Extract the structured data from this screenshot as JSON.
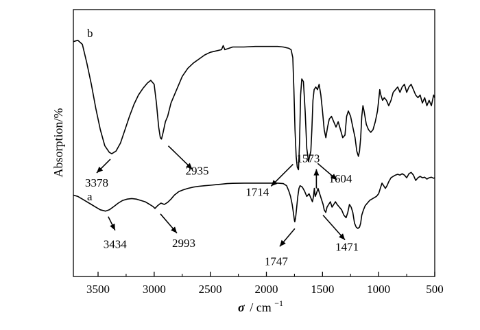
{
  "chart_data": {
    "type": "line",
    "title": "",
    "xlabel_symbol": "σ",
    "xlabel_unit": "/ cm",
    "xlabel_sup": "−1",
    "ylabel": "Absorption/%",
    "xlim": [
      3720,
      500
    ],
    "x_reversed": true,
    "y_tick_labels": false,
    "xticks": [
      3500,
      3000,
      2500,
      2000,
      1500,
      1000,
      500
    ],
    "series": [
      {
        "name": "b",
        "points": [
          [
            3720,
            0.88
          ],
          [
            3680,
            0.885
          ],
          [
            3640,
            0.87
          ],
          [
            3600,
            0.8
          ],
          [
            3560,
            0.72
          ],
          [
            3520,
            0.63
          ],
          [
            3480,
            0.55
          ],
          [
            3440,
            0.49
          ],
          [
            3400,
            0.465
          ],
          [
            3378,
            0.46
          ],
          [
            3340,
            0.47
          ],
          [
            3300,
            0.5
          ],
          [
            3260,
            0.55
          ],
          [
            3220,
            0.6
          ],
          [
            3180,
            0.645
          ],
          [
            3140,
            0.68
          ],
          [
            3100,
            0.705
          ],
          [
            3060,
            0.725
          ],
          [
            3030,
            0.735
          ],
          [
            3000,
            0.72
          ],
          [
            2980,
            0.65
          ],
          [
            2960,
            0.56
          ],
          [
            2945,
            0.52
          ],
          [
            2935,
            0.515
          ],
          [
            2920,
            0.54
          ],
          [
            2900,
            0.58
          ],
          [
            2880,
            0.6
          ],
          [
            2850,
            0.65
          ],
          [
            2800,
            0.7
          ],
          [
            2750,
            0.75
          ],
          [
            2700,
            0.78
          ],
          [
            2650,
            0.8
          ],
          [
            2600,
            0.815
          ],
          [
            2550,
            0.83
          ],
          [
            2500,
            0.84
          ],
          [
            2450,
            0.845
          ],
          [
            2400,
            0.85
          ],
          [
            2385,
            0.865
          ],
          [
            2370,
            0.85
          ],
          [
            2300,
            0.86
          ],
          [
            2200,
            0.86
          ],
          [
            2100,
            0.862
          ],
          [
            2000,
            0.862
          ],
          [
            1900,
            0.862
          ],
          [
            1850,
            0.86
          ],
          [
            1800,
            0.855
          ],
          [
            1780,
            0.85
          ],
          [
            1765,
            0.82
          ],
          [
            1755,
            0.7
          ],
          [
            1745,
            0.55
          ],
          [
            1735,
            0.45
          ],
          [
            1725,
            0.41
          ],
          [
            1714,
            0.4
          ],
          [
            1705,
            0.5
          ],
          [
            1695,
            0.68
          ],
          [
            1685,
            0.74
          ],
          [
            1670,
            0.73
          ],
          [
            1655,
            0.62
          ],
          [
            1640,
            0.48
          ],
          [
            1625,
            0.43
          ],
          [
            1615,
            0.45
          ],
          [
            1604,
            0.47
          ],
          [
            1595,
            0.55
          ],
          [
            1585,
            0.66
          ],
          [
            1575,
            0.7
          ],
          [
            1560,
            0.71
          ],
          [
            1545,
            0.7
          ],
          [
            1530,
            0.72
          ],
          [
            1515,
            0.68
          ],
          [
            1500,
            0.62
          ],
          [
            1485,
            0.55
          ],
          [
            1470,
            0.52
          ],
          [
            1455,
            0.56
          ],
          [
            1440,
            0.59
          ],
          [
            1420,
            0.6
          ],
          [
            1400,
            0.58
          ],
          [
            1380,
            0.56
          ],
          [
            1360,
            0.58
          ],
          [
            1340,
            0.55
          ],
          [
            1320,
            0.52
          ],
          [
            1300,
            0.53
          ],
          [
            1285,
            0.6
          ],
          [
            1270,
            0.62
          ],
          [
            1250,
            0.6
          ],
          [
            1230,
            0.56
          ],
          [
            1210,
            0.52
          ],
          [
            1195,
            0.47
          ],
          [
            1180,
            0.45
          ],
          [
            1170,
            0.47
          ],
          [
            1160,
            0.52
          ],
          [
            1150,
            0.6
          ],
          [
            1140,
            0.64
          ],
          [
            1130,
            0.62
          ],
          [
            1110,
            0.57
          ],
          [
            1090,
            0.55
          ],
          [
            1070,
            0.54
          ],
          [
            1050,
            0.55
          ],
          [
            1030,
            0.58
          ],
          [
            1010,
            0.62
          ],
          [
            1000,
            0.66
          ],
          [
            990,
            0.7
          ],
          [
            980,
            0.68
          ],
          [
            965,
            0.66
          ],
          [
            950,
            0.67
          ],
          [
            930,
            0.66
          ],
          [
            910,
            0.64
          ],
          [
            890,
            0.66
          ],
          [
            870,
            0.69
          ],
          [
            850,
            0.7
          ],
          [
            830,
            0.71
          ],
          [
            810,
            0.69
          ],
          [
            790,
            0.71
          ],
          [
            770,
            0.72
          ],
          [
            750,
            0.69
          ],
          [
            730,
            0.71
          ],
          [
            710,
            0.72
          ],
          [
            690,
            0.7
          ],
          [
            670,
            0.68
          ],
          [
            650,
            0.67
          ],
          [
            630,
            0.68
          ],
          [
            610,
            0.65
          ],
          [
            590,
            0.67
          ],
          [
            570,
            0.64
          ],
          [
            550,
            0.66
          ],
          [
            530,
            0.64
          ],
          [
            510,
            0.68
          ],
          [
            500,
            0.67
          ]
        ]
      },
      {
        "name": "a",
        "points": [
          [
            3720,
            0.305
          ],
          [
            3680,
            0.3
          ],
          [
            3640,
            0.29
          ],
          [
            3600,
            0.28
          ],
          [
            3560,
            0.27
          ],
          [
            3520,
            0.26
          ],
          [
            3480,
            0.25
          ],
          [
            3434,
            0.245
          ],
          [
            3400,
            0.25
          ],
          [
            3360,
            0.262
          ],
          [
            3320,
            0.275
          ],
          [
            3280,
            0.285
          ],
          [
            3240,
            0.29
          ],
          [
            3200,
            0.292
          ],
          [
            3160,
            0.29
          ],
          [
            3120,
            0.285
          ],
          [
            3080,
            0.28
          ],
          [
            3040,
            0.27
          ],
          [
            3010,
            0.262
          ],
          [
            2993,
            0.255
          ],
          [
            2970,
            0.265
          ],
          [
            2940,
            0.275
          ],
          [
            2910,
            0.27
          ],
          [
            2880,
            0.278
          ],
          [
            2850,
            0.29
          ],
          [
            2820,
            0.305
          ],
          [
            2780,
            0.318
          ],
          [
            2740,
            0.325
          ],
          [
            2700,
            0.33
          ],
          [
            2650,
            0.335
          ],
          [
            2600,
            0.338
          ],
          [
            2550,
            0.34
          ],
          [
            2500,
            0.342
          ],
          [
            2450,
            0.344
          ],
          [
            2400,
            0.346
          ],
          [
            2350,
            0.348
          ],
          [
            2300,
            0.349
          ],
          [
            2200,
            0.35
          ],
          [
            2100,
            0.35
          ],
          [
            2000,
            0.35
          ],
          [
            1900,
            0.35
          ],
          [
            1850,
            0.348
          ],
          [
            1820,
            0.34
          ],
          [
            1800,
            0.32
          ],
          [
            1785,
            0.3
          ],
          [
            1770,
            0.27
          ],
          [
            1760,
            0.24
          ],
          [
            1750,
            0.21
          ],
          [
            1747,
            0.205
          ],
          [
            1740,
            0.22
          ],
          [
            1730,
            0.26
          ],
          [
            1720,
            0.3
          ],
          [
            1710,
            0.33
          ],
          [
            1700,
            0.34
          ],
          [
            1680,
            0.335
          ],
          [
            1660,
            0.32
          ],
          [
            1640,
            0.3
          ],
          [
            1620,
            0.31
          ],
          [
            1600,
            0.29
          ],
          [
            1590,
            0.28
          ],
          [
            1580,
            0.3
          ],
          [
            1573,
            0.33
          ],
          [
            1565,
            0.3
          ],
          [
            1555,
            0.31
          ],
          [
            1540,
            0.33
          ],
          [
            1525,
            0.31
          ],
          [
            1510,
            0.29
          ],
          [
            1495,
            0.27
          ],
          [
            1485,
            0.25
          ],
          [
            1471,
            0.24
          ],
          [
            1460,
            0.26
          ],
          [
            1445,
            0.27
          ],
          [
            1430,
            0.28
          ],
          [
            1415,
            0.26
          ],
          [
            1400,
            0.27
          ],
          [
            1385,
            0.28
          ],
          [
            1370,
            0.27
          ],
          [
            1350,
            0.26
          ],
          [
            1330,
            0.25
          ],
          [
            1310,
            0.23
          ],
          [
            1290,
            0.22
          ],
          [
            1275,
            0.24
          ],
          [
            1260,
            0.27
          ],
          [
            1245,
            0.26
          ],
          [
            1230,
            0.24
          ],
          [
            1215,
            0.2
          ],
          [
            1200,
            0.185
          ],
          [
            1185,
            0.18
          ],
          [
            1170,
            0.185
          ],
          [
            1160,
            0.2
          ],
          [
            1150,
            0.23
          ],
          [
            1135,
            0.25
          ],
          [
            1120,
            0.265
          ],
          [
            1100,
            0.275
          ],
          [
            1080,
            0.285
          ],
          [
            1060,
            0.29
          ],
          [
            1040,
            0.295
          ],
          [
            1020,
            0.3
          ],
          [
            1000,
            0.31
          ],
          [
            985,
            0.33
          ],
          [
            970,
            0.35
          ],
          [
            955,
            0.34
          ],
          [
            940,
            0.33
          ],
          [
            925,
            0.34
          ],
          [
            910,
            0.355
          ],
          [
            890,
            0.37
          ],
          [
            870,
            0.375
          ],
          [
            850,
            0.38
          ],
          [
            830,
            0.383
          ],
          [
            810,
            0.38
          ],
          [
            790,
            0.385
          ],
          [
            770,
            0.38
          ],
          [
            750,
            0.37
          ],
          [
            730,
            0.385
          ],
          [
            710,
            0.39
          ],
          [
            690,
            0.38
          ],
          [
            670,
            0.36
          ],
          [
            650,
            0.37
          ],
          [
            630,
            0.375
          ],
          [
            610,
            0.37
          ],
          [
            590,
            0.372
          ],
          [
            570,
            0.365
          ],
          [
            550,
            0.37
          ],
          [
            530,
            0.372
          ],
          [
            510,
            0.368
          ],
          [
            500,
            0.37
          ]
        ]
      }
    ],
    "annotations": [
      {
        "text": "3378",
        "x": 3378,
        "series": "b"
      },
      {
        "text": "2935",
        "x": 2935,
        "series": "b"
      },
      {
        "text": "1714",
        "x": 1714,
        "series": "b"
      },
      {
        "text": "1604",
        "x": 1604,
        "series": "b"
      },
      {
        "text": "3434",
        "x": 3434,
        "series": "a"
      },
      {
        "text": "2993",
        "x": 2993,
        "series": "a"
      },
      {
        "text": "1747",
        "x": 1747,
        "series": "a"
      },
      {
        "text": "1573",
        "x": 1573,
        "series": "a"
      },
      {
        "text": "1471",
        "x": 1471,
        "series": "a"
      }
    ]
  }
}
